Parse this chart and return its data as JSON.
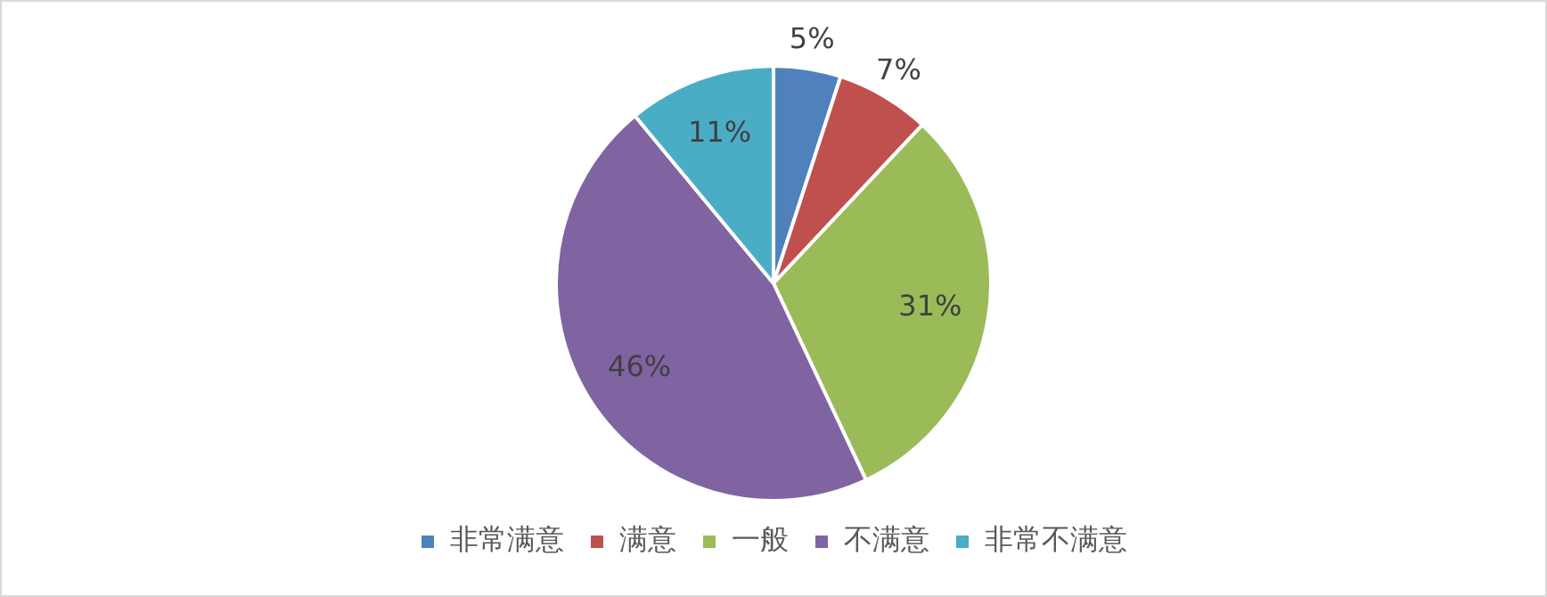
{
  "chart_data": {
    "type": "pie",
    "categories": [
      "非常满意",
      "满意",
      "一般",
      "不满意",
      "非常不满意"
    ],
    "values": [
      5,
      7,
      31,
      46,
      11
    ],
    "colors": [
      "#4f81bd",
      "#c0504d",
      "#9bbb59",
      "#8064a2",
      "#4bacc6"
    ],
    "value_labels": [
      "5%",
      "7%",
      "31%",
      "46%",
      "11%"
    ],
    "legend": "bottom"
  }
}
